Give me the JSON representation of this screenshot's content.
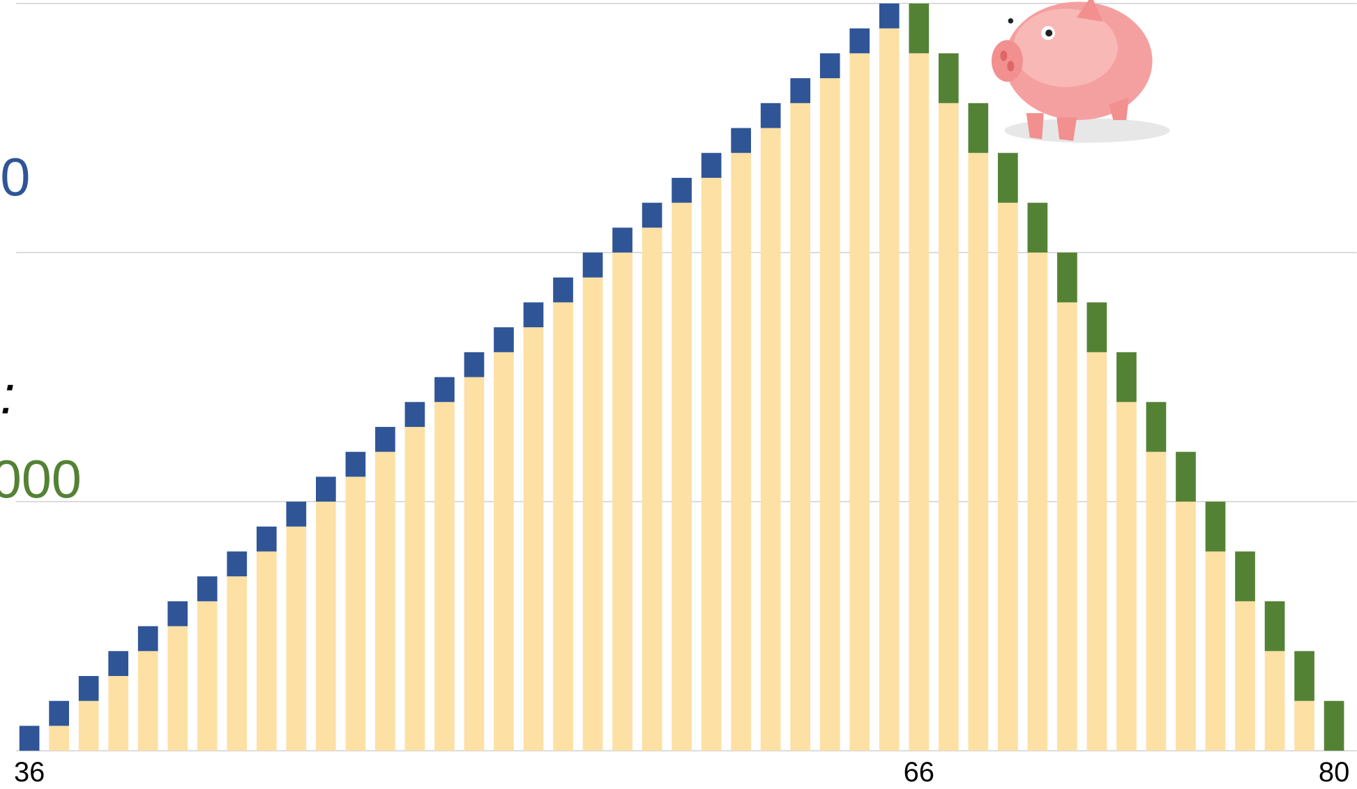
{
  "chart_data": {
    "type": "stacked_bar",
    "categories": [
      "36",
      null,
      null,
      null,
      null,
      null,
      null,
      null,
      null,
      null,
      null,
      null,
      null,
      null,
      null,
      null,
      null,
      null,
      null,
      null,
      null,
      null,
      null,
      null,
      null,
      null,
      null,
      null,
      null,
      null,
      "66",
      null,
      null,
      null,
      null,
      null,
      null,
      null,
      null,
      null,
      null,
      null,
      null,
      null,
      "80"
    ],
    "series": [
      {
        "color": "#fde0a4",
        "values": [
          0,
          1,
          2,
          3,
          4,
          5,
          6,
          7,
          8,
          9,
          10,
          11,
          12,
          13,
          14,
          15,
          16,
          17,
          18,
          19,
          20,
          21,
          22,
          23,
          24,
          25,
          26,
          27,
          28,
          29,
          28,
          26,
          24,
          22,
          20,
          18,
          16,
          14,
          12,
          10,
          8,
          6,
          4,
          2,
          0
        ]
      },
      {
        "color": "#2f5597",
        "values": [
          1,
          1,
          1,
          1,
          1,
          1,
          1,
          1,
          1,
          1,
          1,
          1,
          1,
          1,
          1,
          1,
          1,
          1,
          1,
          1,
          1,
          1,
          1,
          1,
          1,
          1,
          1,
          1,
          1,
          1,
          null,
          null,
          null,
          null,
          null,
          null,
          null,
          null,
          null,
          null,
          null,
          null,
          null,
          null,
          null
        ]
      },
      {
        "color": "#548235",
        "values": [
          null,
          null,
          null,
          null,
          null,
          null,
          null,
          null,
          null,
          null,
          null,
          null,
          null,
          null,
          null,
          null,
          null,
          null,
          null,
          null,
          null,
          null,
          null,
          null,
          null,
          null,
          null,
          null,
          null,
          null,
          2,
          2,
          2,
          2,
          2,
          2,
          2,
          2,
          2,
          2,
          2,
          2,
          2,
          2,
          2
        ]
      }
    ],
    "ylim": [
      0,
      30
    ],
    "yticks": [
      0,
      10,
      20,
      30
    ],
    "grid": true,
    "annotations": [
      {
        "text": "0",
        "color": "#2f5597"
      },
      {
        "text": ":",
        "color": "#000000"
      },
      {
        "text": "000",
        "color": "#548235"
      }
    ]
  }
}
